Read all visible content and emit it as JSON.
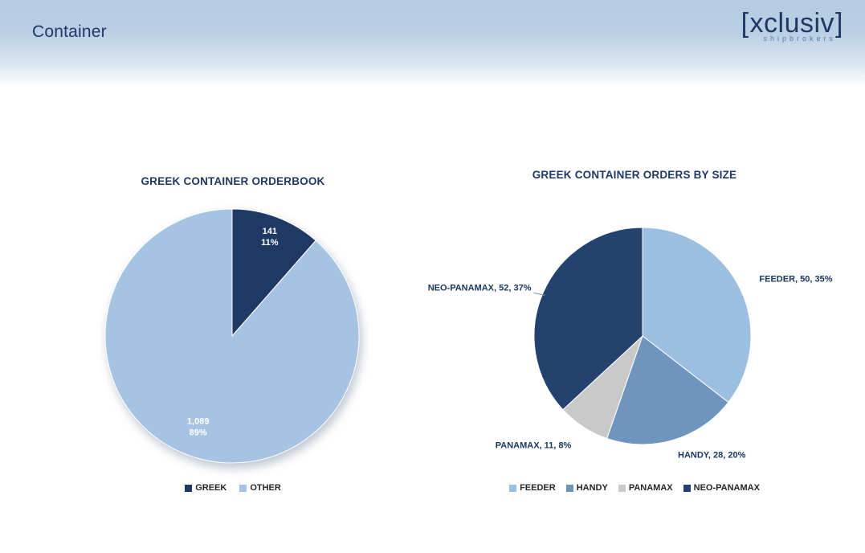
{
  "header": {
    "title": "Container",
    "logo": {
      "bracket_open": "[",
      "name": "xclusiv",
      "bracket_close": "]",
      "tagline": "shipbrokers"
    }
  },
  "colors": {
    "title_navy": "#1F3864",
    "header_band": "#B5CBE1"
  },
  "chart_data": [
    {
      "type": "pie",
      "title": "GREEK CONTAINER ORDERBOOK",
      "labels": [
        "GREEK",
        "OTHER"
      ],
      "values": [
        141,
        1089
      ],
      "values_display": [
        "141",
        "1,089"
      ],
      "percents": [
        "11%",
        "89%"
      ],
      "colors": [
        "#1F3864",
        "#A6C3E1"
      ],
      "legend": [
        "GREEK",
        "OTHER"
      ],
      "legend_position": "bottom",
      "label_style": "inside: value and percent"
    },
    {
      "type": "pie",
      "title": "GREEK CONTAINER ORDERS BY SIZE",
      "labels": [
        "FEEDER",
        "HANDY",
        "PANAMAX",
        "NEO-PANAMAX"
      ],
      "values": [
        50,
        28,
        11,
        52
      ],
      "percents": [
        "35%",
        "20%",
        "8%",
        "37%"
      ],
      "colors": [
        "#9CBFE0",
        "#6D95BE",
        "#C9C9C9",
        "#24426E"
      ],
      "data_labels": [
        "FEEDER, 50, 35%",
        "HANDY, 28, 20%",
        "PANAMAX, 11, 8%",
        "NEO-PANAMAX, 52, 37%"
      ],
      "legend": [
        "FEEDER",
        "HANDY",
        "PANAMAX",
        "NEO-PANAMAX"
      ],
      "legend_position": "bottom",
      "label_style": "outside: category, value, percent"
    }
  ]
}
